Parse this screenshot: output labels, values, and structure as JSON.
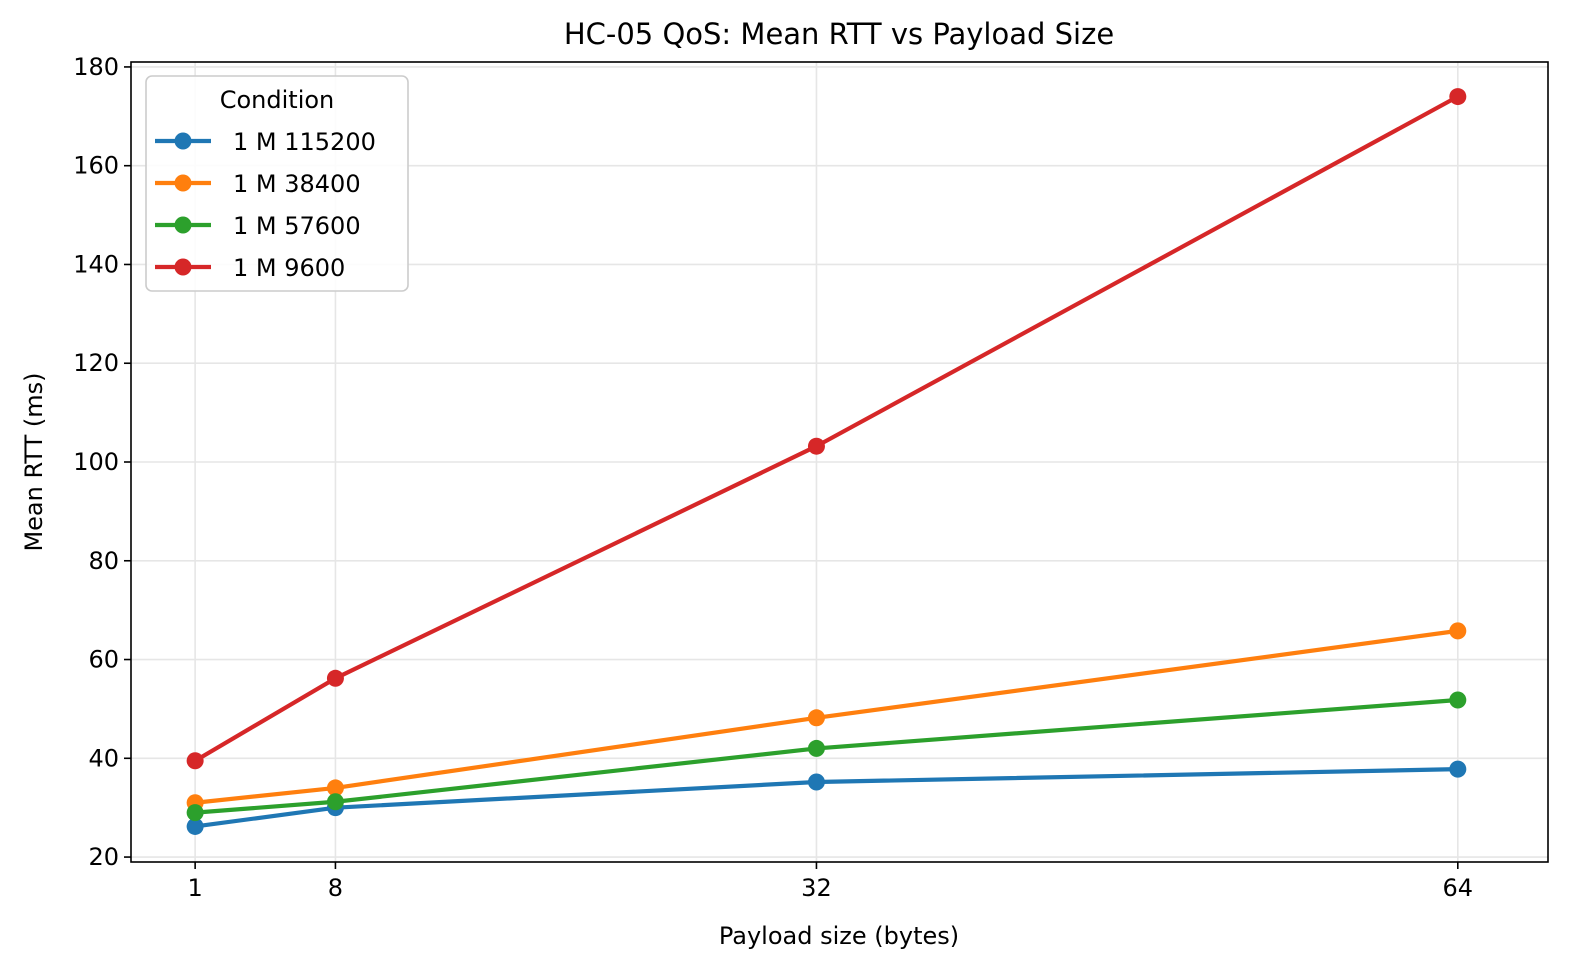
{
  "chart_data": {
    "type": "line",
    "title": "HC-05 QoS: Mean RTT vs Payload Size",
    "xlabel": "Payload size (bytes)",
    "ylabel": "Mean RTT (ms)",
    "x": [
      1,
      8,
      32,
      64
    ],
    "xticks": [
      1,
      8,
      32,
      64
    ],
    "xlim": [
      -2.2,
      68.5
    ],
    "ylim": [
      19,
      181
    ],
    "yticks": [
      20,
      40,
      60,
      80,
      100,
      120,
      140,
      160,
      180
    ],
    "grid": true,
    "legend": {
      "title": "Condition",
      "placement": "top-left"
    },
    "series": [
      {
        "name": "1 M 115200",
        "color": "#1f77b4",
        "values": [
          26.2,
          30.0,
          35.2,
          37.8
        ]
      },
      {
        "name": "1 M 38400",
        "color": "#ff7f0e",
        "values": [
          31.0,
          34.0,
          48.2,
          65.8
        ]
      },
      {
        "name": "1 M 57600",
        "color": "#2ca02c",
        "values": [
          29.0,
          31.2,
          42.0,
          51.8
        ]
      },
      {
        "name": "1 M 9600",
        "color": "#d62728",
        "values": [
          39.5,
          56.2,
          103.2,
          174.0
        ]
      }
    ]
  }
}
